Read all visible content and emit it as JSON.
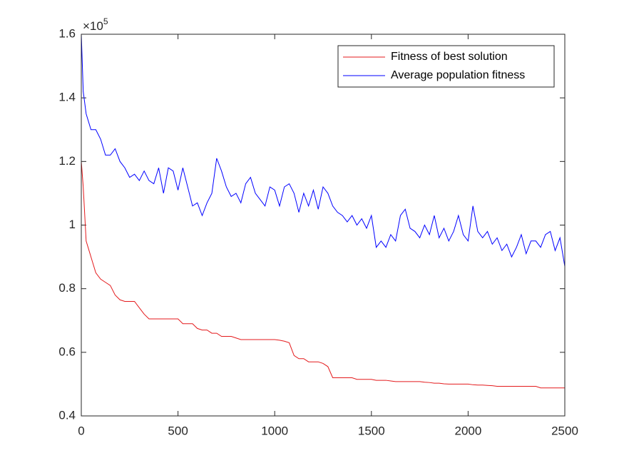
{
  "chart_data": {
    "type": "line",
    "y_multiplier": {
      "base": "×10",
      "exponent": "5"
    },
    "x": [
      0,
      10,
      25,
      50,
      75,
      100,
      125,
      150,
      175,
      200,
      225,
      250,
      275,
      300,
      325,
      350,
      375,
      400,
      425,
      450,
      475,
      500,
      525,
      550,
      575,
      600,
      625,
      650,
      675,
      700,
      725,
      750,
      775,
      800,
      825,
      850,
      875,
      900,
      925,
      950,
      975,
      1000,
      1025,
      1050,
      1075,
      1100,
      1125,
      1150,
      1175,
      1200,
      1225,
      1250,
      1275,
      1300,
      1325,
      1350,
      1375,
      1400,
      1425,
      1450,
      1475,
      1500,
      1525,
      1550,
      1575,
      1600,
      1625,
      1650,
      1675,
      1700,
      1725,
      1750,
      1775,
      1800,
      1825,
      1850,
      1875,
      1900,
      1925,
      1950,
      1975,
      2000,
      2025,
      2050,
      2075,
      2100,
      2125,
      2150,
      2175,
      2200,
      2225,
      2250,
      2275,
      2300,
      2325,
      2350,
      2375,
      2400,
      2425,
      2450,
      2475,
      2500
    ],
    "series": [
      {
        "name": "Fitness of best solution",
        "color": "#e41a1c",
        "values": [
          1.2,
          1.12,
          0.95,
          0.9,
          0.85,
          0.83,
          0.82,
          0.81,
          0.78,
          0.765,
          0.76,
          0.76,
          0.76,
          0.74,
          0.72,
          0.705,
          0.705,
          0.705,
          0.705,
          0.705,
          0.705,
          0.705,
          0.69,
          0.69,
          0.69,
          0.675,
          0.67,
          0.67,
          0.66,
          0.66,
          0.65,
          0.65,
          0.65,
          0.645,
          0.64,
          0.64,
          0.64,
          0.64,
          0.64,
          0.64,
          0.64,
          0.64,
          0.638,
          0.635,
          0.63,
          0.59,
          0.58,
          0.58,
          0.57,
          0.57,
          0.57,
          0.565,
          0.555,
          0.52,
          0.52,
          0.52,
          0.52,
          0.52,
          0.515,
          0.515,
          0.515,
          0.515,
          0.512,
          0.512,
          0.512,
          0.51,
          0.508,
          0.508,
          0.508,
          0.508,
          0.508,
          0.508,
          0.506,
          0.505,
          0.503,
          0.503,
          0.501,
          0.5,
          0.5,
          0.5,
          0.5,
          0.5,
          0.498,
          0.497,
          0.497,
          0.496,
          0.495,
          0.493,
          0.493,
          0.493,
          0.493,
          0.493,
          0.493,
          0.493,
          0.493,
          0.493,
          0.488,
          0.488,
          0.488,
          0.488,
          0.488,
          0.488
        ]
      },
      {
        "name": "Average population fitness",
        "color": "#0000ff",
        "values": [
          1.6,
          1.42,
          1.35,
          1.3,
          1.3,
          1.27,
          1.22,
          1.22,
          1.24,
          1.2,
          1.18,
          1.15,
          1.16,
          1.14,
          1.17,
          1.14,
          1.13,
          1.18,
          1.1,
          1.18,
          1.17,
          1.11,
          1.18,
          1.12,
          1.06,
          1.07,
          1.03,
          1.07,
          1.1,
          1.21,
          1.17,
          1.12,
          1.09,
          1.1,
          1.07,
          1.13,
          1.15,
          1.1,
          1.08,
          1.06,
          1.12,
          1.11,
          1.06,
          1.12,
          1.13,
          1.1,
          1.04,
          1.1,
          1.06,
          1.11,
          1.05,
          1.12,
          1.1,
          1.06,
          1.04,
          1.03,
          1.01,
          1.03,
          1.0,
          1.02,
          0.99,
          1.03,
          0.93,
          0.95,
          0.93,
          0.97,
          0.95,
          1.03,
          1.05,
          0.99,
          0.98,
          0.96,
          1.0,
          0.97,
          1.03,
          0.96,
          0.99,
          0.95,
          0.98,
          1.03,
          0.97,
          0.95,
          1.06,
          0.98,
          0.96,
          0.98,
          0.94,
          0.96,
          0.92,
          0.94,
          0.9,
          0.93,
          0.97,
          0.91,
          0.95,
          0.95,
          0.93,
          0.97,
          0.98,
          0.92,
          0.96,
          0.87
        ]
      }
    ],
    "xlim": [
      0,
      2500
    ],
    "ylim": [
      0.4,
      1.6
    ],
    "xticks": [
      0,
      500,
      1000,
      1500,
      2000,
      2500
    ],
    "yticks": [
      0.4,
      0.6,
      0.8,
      1,
      1.2,
      1.4,
      1.6
    ],
    "grid": false,
    "legend": "northeast"
  }
}
